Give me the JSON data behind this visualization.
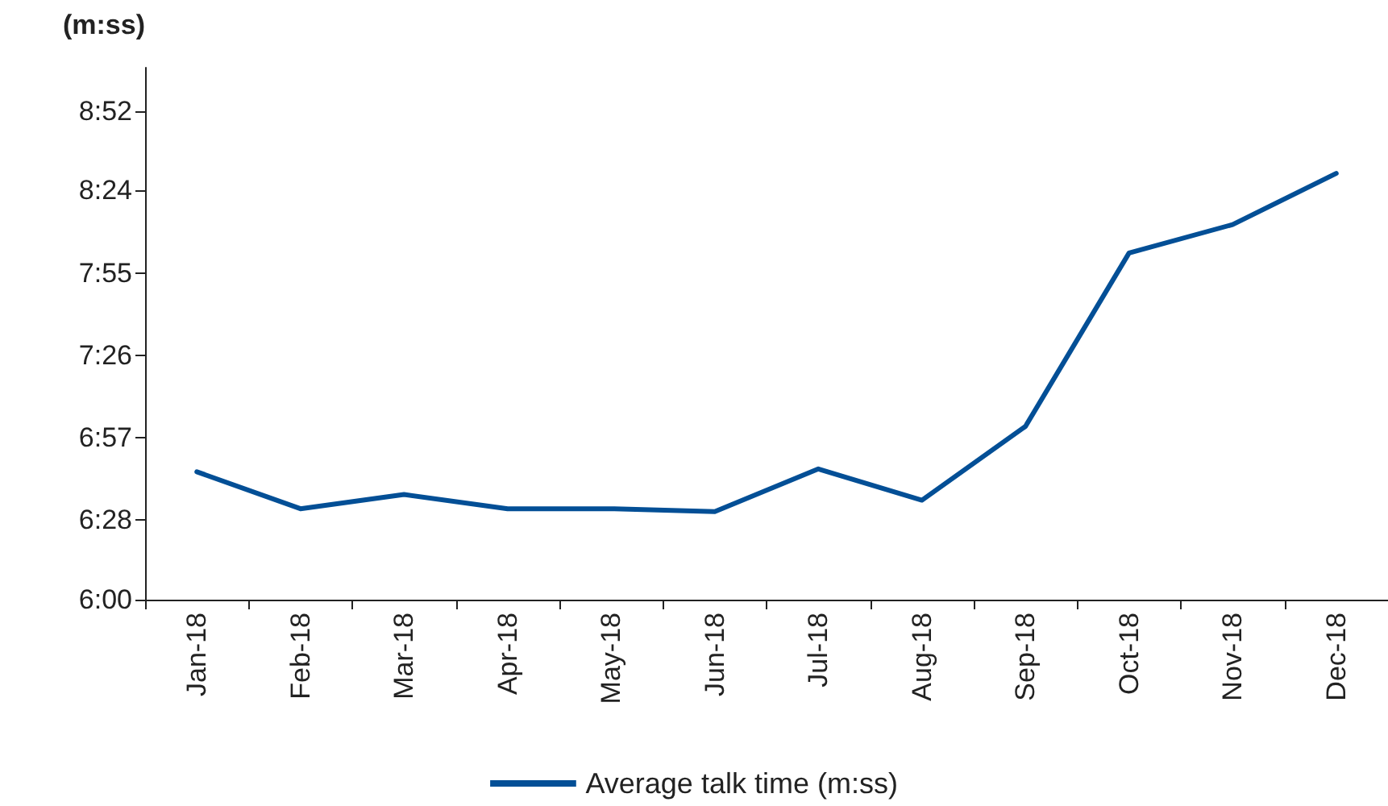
{
  "chart_data": {
    "type": "line",
    "ylabel": "(m:ss)",
    "categories": [
      "Jan-18",
      "Feb-18",
      "Mar-18",
      "Apr-18",
      "May-18",
      "Jun-18",
      "Jul-18",
      "Aug-18",
      "Sep-18",
      "Oct-18",
      "Nov-18",
      "Dec-18"
    ],
    "series": [
      {
        "name": "Average talk time (m:ss)",
        "color": "#034f96",
        "values": [
          405,
          392,
          397,
          392,
          392,
          391,
          406,
          395,
          421,
          482,
          492,
          510
        ]
      }
    ],
    "ylim": [
      360,
      547.2
    ],
    "yticks": [
      {
        "value": 360,
        "label": "6:00"
      },
      {
        "value": 388,
        "label": "6:28"
      },
      {
        "value": 417,
        "label": "6:57"
      },
      {
        "value": 446,
        "label": "7:26"
      },
      {
        "value": 475,
        "label": "7:55"
      },
      {
        "value": 504,
        "label": "8:24"
      },
      {
        "value": 532,
        "label": "8:52"
      }
    ],
    "grid": false,
    "legend": "bottom",
    "marker": "none",
    "line_style": "solid"
  }
}
